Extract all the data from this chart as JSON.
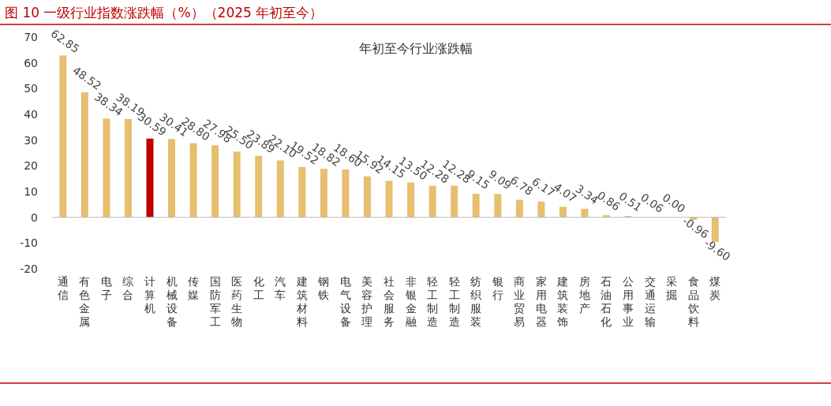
{
  "chart_data": {
    "type": "bar",
    "title": "图 10 一级行业指数涨跌幅（%）（2025 年初至今）",
    "subtitle": "年初至今行业涨跌幅",
    "categories": [
      "通信",
      "有色金属",
      "电子",
      "综合",
      "计算机",
      "机械设备",
      "传媒",
      "国防军工",
      "医药生物",
      "化工",
      "汽车",
      "建筑材料",
      "钢铁",
      "电气设备",
      "美容护理",
      "社会服务",
      "非银金融",
      "轻工制造",
      "轻工制造",
      "纺织服装",
      "银行",
      "商业贸易",
      "家用电器",
      "建筑装饰",
      "房地产",
      "石油石化",
      "公用事业",
      "交通运输",
      "采掘",
      "食品饮料",
      "煤炭"
    ],
    "values": [
      62.85,
      48.52,
      38.34,
      38.19,
      30.59,
      30.41,
      28.8,
      27.98,
      25.5,
      23.89,
      22.1,
      19.52,
      18.82,
      18.6,
      15.92,
      14.15,
      13.5,
      12.28,
      12.28,
      9.15,
      9.09,
      6.78,
      6.17,
      4.07,
      3.34,
      0.86,
      0.51,
      0.06,
      0.0,
      -0.96,
      -9.6
    ],
    "value_labels": [
      "62.85",
      "48.52",
      "38.34",
      "38.19",
      "30.59",
      "30.41",
      "28.80",
      "27.98",
      "25.50",
      "23.89",
      "22.10",
      "19.52",
      "18.82",
      "18.60",
      "15.92",
      "14.15",
      "13.50",
      "12.28",
      "12.28",
      "9.15",
      "9.09",
      "6.78",
      "6.17",
      "4.07",
      "3.34",
      "0.86",
      "0.51",
      "0.06",
      "0.00",
      "-0.96",
      "-9.60"
    ],
    "colors": [
      "#e6bf6f",
      "#e6bf6f",
      "#e6bf6f",
      "#e6bf6f",
      "#c00000",
      "#e6bf6f",
      "#e6bf6f",
      "#e6bf6f",
      "#e6bf6f",
      "#e6bf6f",
      "#e6bf6f",
      "#e6bf6f",
      "#e6bf6f",
      "#e6bf6f",
      "#e6bf6f",
      "#e6bf6f",
      "#e6bf6f",
      "#e6bf6f",
      "#e6bf6f",
      "#e6bf6f",
      "#e6bf6f",
      "#e6bf6f",
      "#e6bf6f",
      "#e6bf6f",
      "#e6bf6f",
      "#e6bf6f",
      "#e6bf6f",
      "#e6bf6f",
      "#e6bf6f",
      "#e6bf6f",
      "#e6bf6f"
    ],
    "ylim": [
      -20,
      70
    ],
    "yticks": [
      -20,
      -10,
      0,
      10,
      20,
      30,
      40,
      50,
      60,
      70
    ]
  }
}
